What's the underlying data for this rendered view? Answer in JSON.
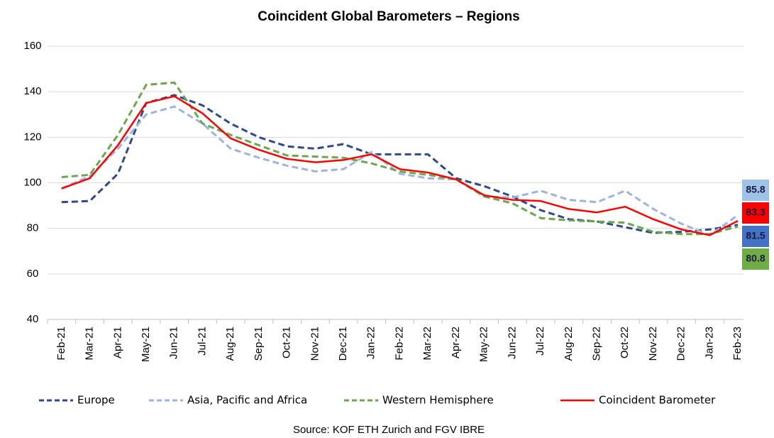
{
  "chart_data": {
    "type": "line",
    "title": "Coincident Global Barometers – Regions",
    "source": "Source: KOF ETH Zurich and FGV IBRE",
    "categories": [
      "Feb-21",
      "Mar-21",
      "Apr-21",
      "May-21",
      "Jun-21",
      "Jul-21",
      "Aug-21",
      "Sep-21",
      "Oct-21",
      "Nov-21",
      "Dec-21",
      "Jan-22",
      "Feb-22",
      "Mar-22",
      "Apr-22",
      "May-22",
      "Jun-22",
      "Jul-22",
      "Aug-22",
      "Sep-22",
      "Oct-22",
      "Nov-22",
      "Dec-22",
      "Jan-23",
      "Feb-23"
    ],
    "series": [
      {
        "name": "Europe",
        "color": "#2f4a8a",
        "dashed": true,
        "label_color": "#4472c4",
        "values": [
          91.5,
          92,
          104,
          135,
          138.5,
          134,
          126,
          120,
          116,
          115,
          117,
          112.5,
          112.5,
          112.5,
          102,
          98.5,
          94,
          88,
          84,
          83,
          80.5,
          78,
          78.5,
          79.5,
          81.5
        ]
      },
      {
        "name": "Asia, Pacific and Africa",
        "color": "#9db4e0",
        "dashed": true,
        "label_color": "#9dc3e6",
        "values": [
          97.5,
          103,
          115,
          130,
          133.5,
          126,
          115,
          111,
          107.5,
          105,
          106,
          113.5,
          104,
          102,
          101.5,
          94,
          93.5,
          96.5,
          92.5,
          91.5,
          96.5,
          88.5,
          82,
          77,
          85.8
        ]
      },
      {
        "name": "Western Hemisphere",
        "color": "#6aa84f",
        "dashed": true,
        "label_color": "#70ad47",
        "values": [
          102.5,
          103.5,
          121,
          143,
          144,
          126,
          121,
          116.5,
          112,
          111.5,
          111,
          108.5,
          105,
          103.5,
          101.5,
          94,
          91,
          84.5,
          83.5,
          83,
          82.5,
          78.5,
          77.5,
          77.5,
          80.8
        ]
      },
      {
        "name": "Coincident Barometer",
        "color": "#ff0000",
        "dashed": false,
        "label_color": "#ff0000",
        "values": [
          97.5,
          102,
          116.5,
          135,
          138,
          130.5,
          119.5,
          114.5,
          110.5,
          109,
          110,
          112.5,
          106,
          104.5,
          101.5,
          94.5,
          92.5,
          92,
          88.5,
          87,
          89.5,
          84,
          79.5,
          77,
          83.3
        ]
      }
    ],
    "ylim": [
      40,
      160
    ],
    "yticks": [
      40,
      60,
      80,
      100,
      120,
      140,
      160
    ],
    "grid": true
  }
}
